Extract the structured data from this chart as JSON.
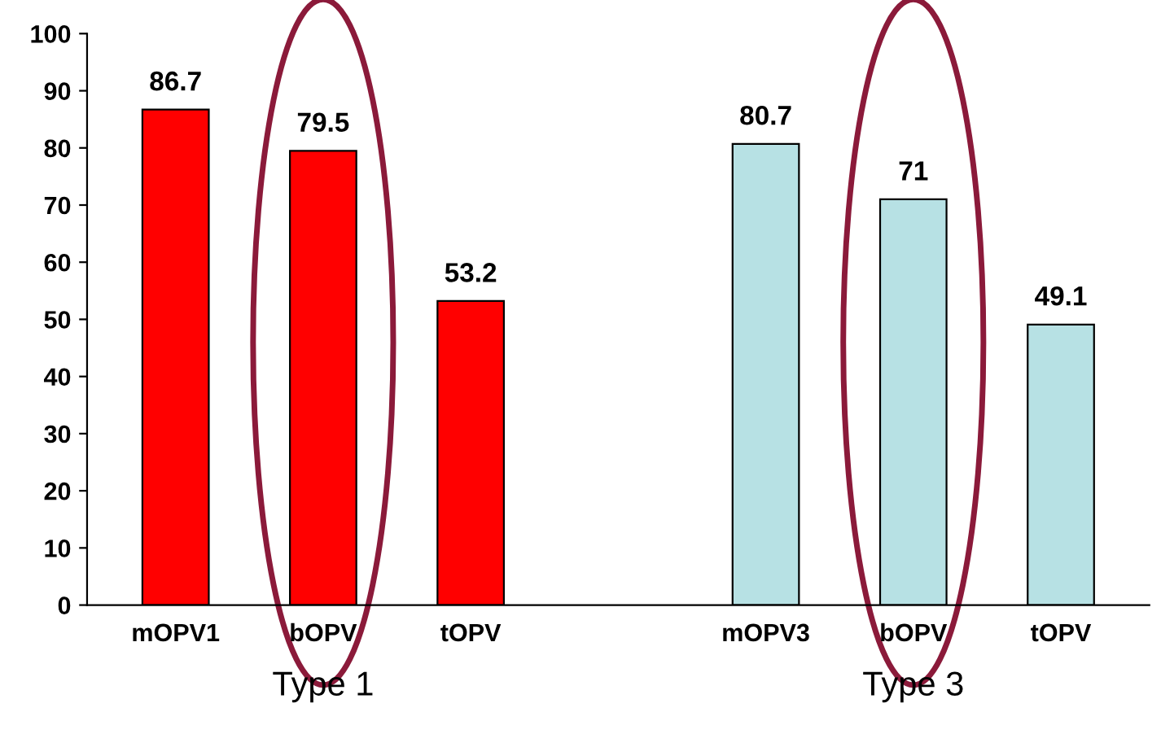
{
  "chart_data": {
    "type": "bar",
    "categories": [
      "mOPV1",
      "bOPV",
      "tOPV",
      null,
      "mOPV3",
      "bOPV",
      "tOPV"
    ],
    "values": [
      86.7,
      79.5,
      53.2,
      null,
      80.7,
      71,
      49.1
    ],
    "colors": [
      "#ff0000",
      "#ff0000",
      "#ff0000",
      "#ffffff",
      "#b7e1e4",
      "#b7e1e4",
      "#b7e1e4"
    ],
    "annotations": [
      "Type 1",
      "Type 3"
    ],
    "ylim": [
      0,
      100
    ],
    "yticks": [
      0,
      10,
      20,
      30,
      40,
      50,
      60,
      70,
      80,
      90,
      100
    ],
    "grid": false,
    "legend": false,
    "data_labels": true
  }
}
